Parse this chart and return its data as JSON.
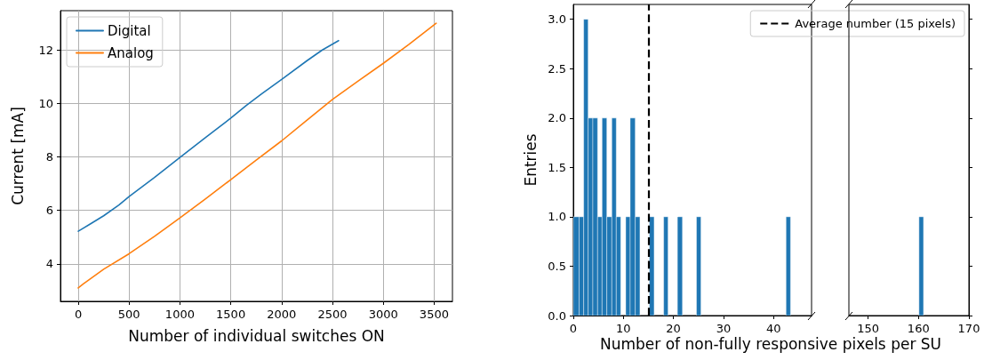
{
  "chart_data": [
    {
      "type": "line",
      "xlabel": "Number of individual switches ON",
      "ylabel": "Current [mA]",
      "xlim": [
        -175,
        3680
      ],
      "ylim": [
        2.6,
        13.47
      ],
      "xticks": [
        0,
        500,
        1000,
        1500,
        2000,
        2500,
        3000,
        3500
      ],
      "yticks": [
        4,
        6,
        8,
        10,
        12
      ],
      "grid": true,
      "legend": "top left",
      "marker": "none",
      "line_style": "solid",
      "series": [
        {
          "name": "Digital",
          "color": "#1f77b4",
          "x": [
            0,
            100,
            250,
            400,
            500,
            750,
            1000,
            1250,
            1500,
            1650,
            1800,
            2000,
            2250,
            2400,
            2560
          ],
          "values": [
            5.22,
            5.45,
            5.8,
            6.2,
            6.52,
            7.23,
            7.98,
            8.72,
            9.45,
            9.92,
            10.35,
            10.9,
            11.6,
            12.0,
            12.35
          ]
        },
        {
          "name": "Analog",
          "color": "#ff7f0e",
          "x": [
            0,
            50,
            250,
            500,
            750,
            1000,
            1250,
            1500,
            1750,
            2000,
            2250,
            2500,
            2750,
            3000,
            3250,
            3520
          ],
          "values": [
            3.1,
            3.25,
            3.8,
            4.38,
            5.03,
            5.72,
            6.43,
            7.15,
            7.88,
            8.6,
            9.38,
            10.15,
            10.83,
            11.5,
            12.2,
            13.0
          ]
        }
      ]
    },
    {
      "type": "histogram",
      "ylabel": "Entries",
      "xlabel": "Number of non-fully responsive pixels per SU",
      "xlim": [
        0,
        47.6
      ],
      "ylim": [
        0,
        3.15
      ],
      "xticks": [
        0,
        10,
        20,
        30,
        40
      ],
      "yticks": [
        {
          "value": 0,
          "label": "0.0"
        },
        0.5,
        {
          "value": 1,
          "label": "1.0"
        },
        1.5,
        {
          "value": 2,
          "label": "2.0"
        },
        2.5,
        {
          "value": 3,
          "label": "3.0"
        }
      ],
      "color": "#1f77b4",
      "legend": "top right",
      "bins": [
        0,
        1.15,
        2.07,
        2.96,
        3.9,
        4.85,
        5.74,
        6.69,
        7.69,
        8.58,
        9.47,
        10.47,
        11.36,
        12.37,
        13.31,
        15.2,
        16.15,
        18.05,
        18.93,
        20.8,
        21.8,
        24.6,
        25.5,
        42.5,
        43.4
      ],
      "values": [
        1,
        1,
        3,
        2,
        2,
        1,
        2,
        1,
        2,
        1,
        0,
        1,
        2,
        1,
        0,
        1,
        0,
        1,
        0,
        1,
        0,
        1,
        0,
        1
      ],
      "ref_lines": [
        {
          "axis": "x",
          "value": 15,
          "label": "Average number (15 pixels)",
          "color": "#000000",
          "line_style": "dashed"
        }
      ]
    },
    {
      "type": "histogram",
      "xlim": [
        146.2,
        170
      ],
      "ylim": [
        0,
        3.15
      ],
      "xticks": [
        150,
        160,
        170
      ],
      "yticks": [
        {
          "value": 0,
          "label": null
        },
        {
          "value": 0.5,
          "label": null
        },
        {
          "value": 1,
          "label": null
        },
        {
          "value": 1.5,
          "label": null
        },
        {
          "value": 2,
          "label": null
        },
        {
          "value": 2.5,
          "label": null
        },
        {
          "value": 3,
          "label": null
        }
      ],
      "tick_labels": "x",
      "color": "#1f77b4",
      "bins": [
        160.1,
        161.0
      ],
      "values": [
        1
      ]
    }
  ]
}
